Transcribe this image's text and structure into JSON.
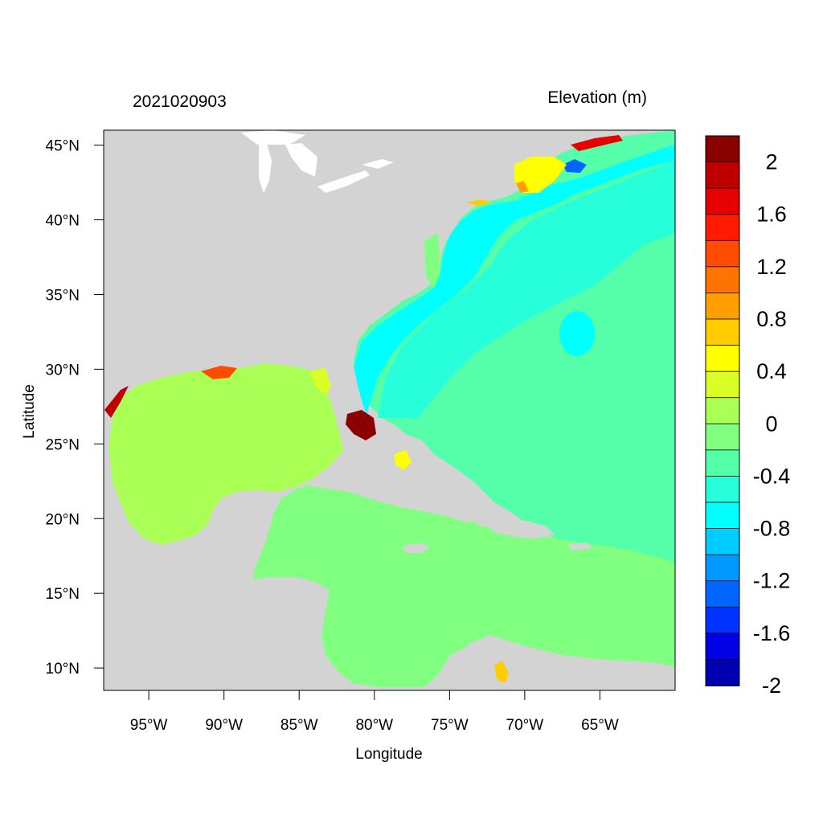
{
  "header": {
    "timestamp": "2021020903",
    "variable_title": "Elevation (m)"
  },
  "axes": {
    "xlabel": "Longitude",
    "ylabel": "Latitude",
    "lon_range": [
      -98,
      -60
    ],
    "lat_range": [
      8.5,
      46
    ],
    "x_ticks": [
      {
        "lon": -95,
        "label": "95°W"
      },
      {
        "lon": -90,
        "label": "90°W"
      },
      {
        "lon": -85,
        "label": "85°W"
      },
      {
        "lon": -80,
        "label": "80°W"
      },
      {
        "lon": -75,
        "label": "75°W"
      },
      {
        "lon": -70,
        "label": "70°W"
      },
      {
        "lon": -65,
        "label": "65°W"
      }
    ],
    "y_ticks": [
      {
        "lat": 45,
        "label": "45°N"
      },
      {
        "lat": 40,
        "label": "40°N"
      },
      {
        "lat": 35,
        "label": "35°N"
      },
      {
        "lat": 30,
        "label": "30°N"
      },
      {
        "lat": 25,
        "label": "25°N"
      },
      {
        "lat": 20,
        "label": "20°N"
      },
      {
        "lat": 15,
        "label": "15°N"
      },
      {
        "lat": 10,
        "label": "10°N"
      }
    ]
  },
  "colorbar": {
    "colors_top_to_bottom": [
      "#8b0000",
      "#bf0000",
      "#e60000",
      "#ff1a00",
      "#ff4d00",
      "#ff7300",
      "#ff9f00",
      "#ffcc00",
      "#ffff00",
      "#d9ff26",
      "#aaff55",
      "#80ff80",
      "#55ffaa",
      "#26ffd9",
      "#00ffff",
      "#00ccff",
      "#0099ff",
      "#0066ff",
      "#0033ff",
      "#0000e6",
      "#0000b3"
    ],
    "labels": [
      {
        "value": 2,
        "label": "2"
      },
      {
        "value": 1.6,
        "label": "1.6"
      },
      {
        "value": 1.2,
        "label": "1.2"
      },
      {
        "value": 0.8,
        "label": "0.8"
      },
      {
        "value": 0.4,
        "label": "0.4"
      },
      {
        "value": 0,
        "label": "0"
      },
      {
        "value": -0.4,
        "label": "-0.4"
      },
      {
        "value": -0.8,
        "label": "-0.8"
      },
      {
        "value": -1.2,
        "label": "-1.2"
      },
      {
        "value": -1.6,
        "label": "-1.6"
      },
      {
        "value": -2,
        "label": "-2"
      }
    ]
  },
  "colors": {
    "land": "#d3d3d3",
    "atlantic": "#55ffaa",
    "gulf": "#aaff55",
    "caribbean": "#80ff80",
    "shelf": "#00ffff",
    "peak_surge": "#8b0000"
  }
}
